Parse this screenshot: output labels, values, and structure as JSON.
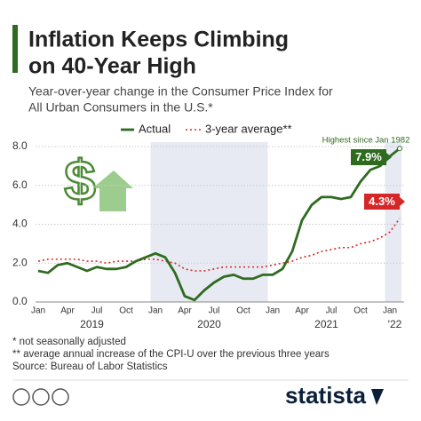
{
  "chart_data": {
    "type": "line",
    "title_lines": [
      "Inflation Keeps Climbing",
      "on 40-Year High"
    ],
    "subtitle_lines": [
      "Year-over-year change in the Consumer Price Index for",
      "All Urban Consumers in the U.S.*"
    ],
    "categories": [
      "Jan",
      null,
      null,
      "Apr",
      null,
      null,
      "Jul",
      null,
      null,
      "Oct",
      null,
      null,
      "Jan",
      null,
      null,
      "Apr",
      null,
      null,
      "Jul",
      null,
      null,
      "Oct",
      null,
      null,
      "Jan",
      null,
      null,
      "Apr",
      null,
      null,
      "Jul",
      null,
      null,
      "Oct",
      null,
      null,
      "Jan",
      null
    ],
    "years": [
      "2019",
      "2020",
      "2021",
      "'22"
    ],
    "series": [
      {
        "name": "Actual",
        "color": "#2e6b1f",
        "values": [
          1.6,
          1.5,
          1.9,
          2.0,
          1.8,
          1.6,
          1.8,
          1.7,
          1.7,
          1.8,
          2.1,
          2.3,
          2.5,
          2.3,
          1.5,
          0.3,
          0.1,
          0.6,
          1.0,
          1.3,
          1.4,
          1.2,
          1.2,
          1.4,
          1.4,
          1.7,
          2.6,
          4.2,
          5.0,
          5.4,
          5.4,
          5.3,
          5.4,
          6.2,
          6.8,
          7.0,
          7.5,
          7.9
        ],
        "value_labels": [
          null,
          null,
          null,
          null,
          null,
          null,
          null,
          null,
          null,
          null,
          null,
          null,
          null,
          null,
          null,
          null,
          null,
          null,
          null,
          null,
          null,
          null,
          null,
          null,
          null,
          null,
          null,
          null,
          null,
          null,
          null,
          null,
          null,
          null,
          null,
          null,
          null,
          "7.9%"
        ]
      },
      {
        "name": "3-year average**",
        "color": "#d62728",
        "values": [
          2.1,
          2.2,
          2.2,
          2.2,
          2.2,
          2.1,
          2.1,
          2.0,
          2.1,
          2.1,
          2.1,
          2.2,
          2.2,
          2.1,
          2.0,
          1.7,
          1.6,
          1.6,
          1.7,
          1.8,
          1.8,
          1.8,
          1.8,
          1.8,
          1.9,
          2.0,
          2.1,
          2.3,
          2.4,
          2.6,
          2.7,
          2.8,
          2.8,
          3.0,
          3.1,
          3.3,
          3.6,
          4.3
        ],
        "value_labels": [
          null,
          null,
          null,
          null,
          null,
          null,
          null,
          null,
          null,
          null,
          null,
          null,
          null,
          null,
          null,
          null,
          null,
          null,
          null,
          null,
          null,
          null,
          null,
          null,
          null,
          null,
          null,
          null,
          null,
          null,
          null,
          null,
          null,
          null,
          null,
          null,
          null,
          "4.3%"
        ]
      }
    ],
    "ylim": [
      0,
      8
    ],
    "yticks": [
      {
        "value": 0,
        "label": "0.0"
      },
      {
        "value": 2,
        "label": "2.0"
      },
      {
        "value": 4,
        "label": "4.0"
      },
      {
        "value": 6,
        "label": "6.0"
      },
      {
        "value": 8,
        "label": "8.0"
      }
    ],
    "grid": true,
    "annotation": "Highest since Jan 1982",
    "footnotes": [
      "*  not seasonally adjusted",
      "** average annual increase of the CPI-U over the previous three years",
      "Source: Bureau of Labor Statistics"
    ],
    "brand": "statista"
  }
}
